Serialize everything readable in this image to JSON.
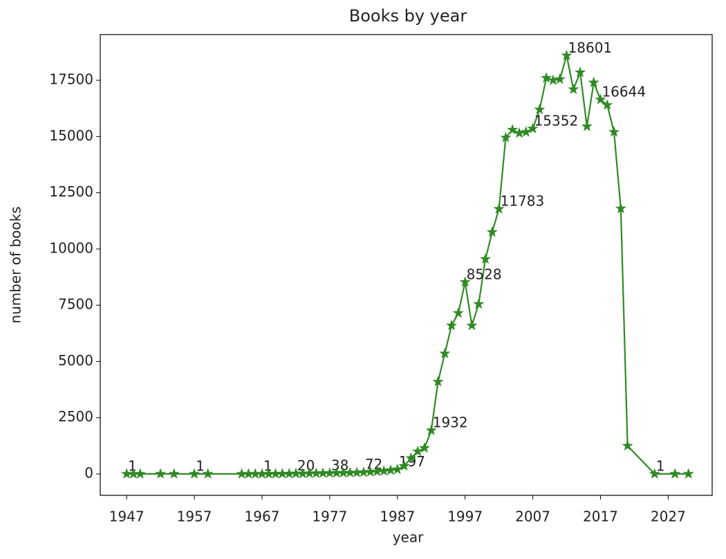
{
  "chart_data": {
    "type": "line",
    "title": "Books by year",
    "xlabel": "year",
    "ylabel": "number of books",
    "x": [
      1947,
      1948,
      1949,
      1952,
      1954,
      1957,
      1959,
      1964,
      1965,
      1966,
      1967,
      1968,
      1969,
      1970,
      1971,
      1972,
      1973,
      1974,
      1975,
      1976,
      1977,
      1978,
      1979,
      1980,
      1981,
      1982,
      1983,
      1984,
      1985,
      1986,
      1987,
      1988,
      1989,
      1990,
      1991,
      1992,
      1993,
      1994,
      1995,
      1996,
      1997,
      1998,
      1999,
      2000,
      2001,
      2002,
      2003,
      2004,
      2005,
      2006,
      2007,
      2008,
      2009,
      2010,
      2011,
      2012,
      2013,
      2014,
      2015,
      2016,
      2017,
      2018,
      2019,
      2020,
      2021,
      2025,
      2028,
      2030
    ],
    "series": [
      {
        "name": "books",
        "color": "#2f8a23",
        "values": [
          1,
          1,
          1,
          1,
          1,
          1,
          1,
          1,
          2,
          1,
          1,
          3,
          5,
          8,
          10,
          20,
          15,
          25,
          30,
          35,
          38,
          45,
          50,
          55,
          60,
          72,
          90,
          110,
          130,
          160,
          197,
          350,
          700,
          1000,
          1150,
          1932,
          4100,
          5350,
          6600,
          7150,
          8528,
          6600,
          7550,
          9550,
          10750,
          11783,
          14950,
          15300,
          15150,
          15200,
          15352,
          16200,
          17600,
          17500,
          17550,
          18601,
          17100,
          17850,
          15450,
          17400,
          16644,
          16400,
          15200,
          11800,
          1250,
          1,
          1,
          1
        ]
      }
    ],
    "label_every": 5,
    "marker": "star",
    "xlim": [
      1943.1,
      2033.5
    ],
    "ylim": [
      -953,
      19532
    ],
    "xticks": [
      1947,
      1957,
      1967,
      1977,
      1987,
      1997,
      2007,
      2017,
      2027
    ],
    "yticks": [
      0,
      2500,
      5000,
      7500,
      10000,
      12500,
      15000,
      17500
    ]
  }
}
